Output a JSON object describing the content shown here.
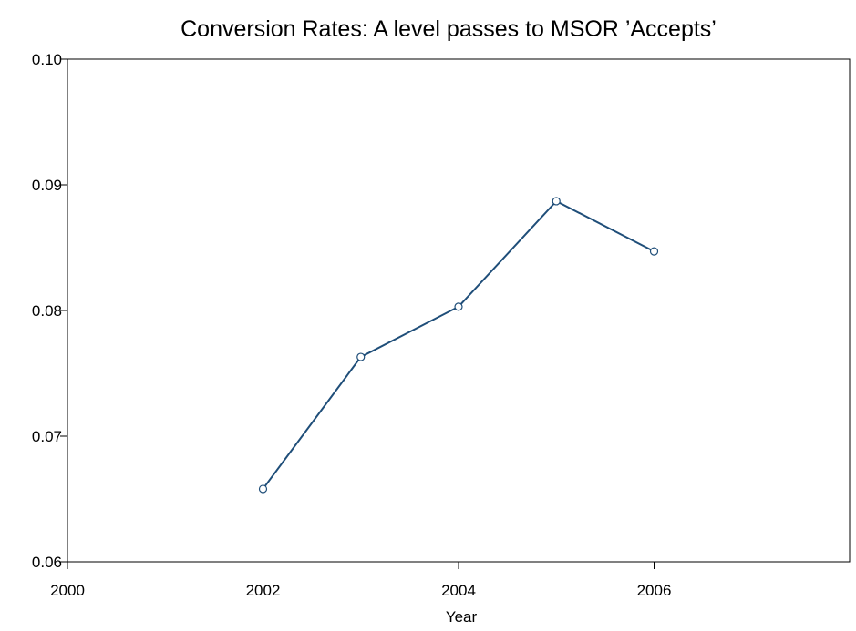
{
  "chart_data": {
    "type": "line",
    "title": "Conversion Rates: A level passes to MSOR ’Accepts’",
    "xlabel": "Year",
    "ylabel": "",
    "xlim": [
      2000,
      2008
    ],
    "ylim": [
      0.06,
      0.1
    ],
    "x_ticks": [
      2000,
      2002,
      2004,
      2006
    ],
    "x_tick_labels": [
      "2000",
      "2002",
      "2004",
      "2006"
    ],
    "y_ticks": [
      0.06,
      0.07,
      0.08,
      0.09,
      0.1
    ],
    "y_tick_labels": [
      "0.06",
      "0.07",
      "0.08",
      "0.09",
      "0.10"
    ],
    "grid": false,
    "series": [
      {
        "color": "#1f4e79",
        "marker": "open-circle",
        "x": [
          2002,
          2003,
          2004,
          2005,
          2006
        ],
        "y": [
          0.0658,
          0.0763,
          0.0803,
          0.0887,
          0.0847
        ]
      }
    ]
  }
}
